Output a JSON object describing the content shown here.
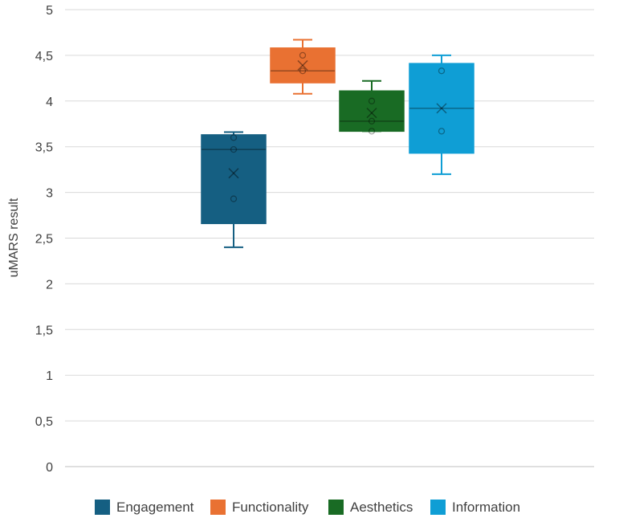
{
  "chart_data": {
    "type": "boxplot",
    "title": "",
    "xlabel": "",
    "ylabel": "uMARS result",
    "ylim": [
      0,
      5
    ],
    "y_ticks": [
      0,
      0.5,
      1,
      1.5,
      2,
      2.5,
      3,
      3.5,
      4,
      4.5,
      5
    ],
    "y_tick_labels": [
      "0",
      "0,5",
      "1",
      "1,5",
      "2",
      "2,5",
      "3",
      "3,5",
      "4",
      "4,5",
      "5"
    ],
    "grid": true,
    "legend_position": "bottom",
    "series": [
      {
        "name": "Engagement",
        "color": "#155F82",
        "min": 2.4,
        "q1": 2.66,
        "median": 3.47,
        "q3": 3.63,
        "max": 3.66,
        "mean": 3.21,
        "points": [
          2.93,
          3.47,
          3.6
        ]
      },
      {
        "name": "Functionality",
        "color": "#E97132",
        "min": 4.08,
        "q1": 4.2,
        "median": 4.33,
        "q3": 4.58,
        "max": 4.67,
        "mean": 4.39,
        "points": [
          4.33,
          4.5
        ]
      },
      {
        "name": "Aesthetics",
        "color": "#196B24",
        "min": 3.67,
        "q1": 3.67,
        "median": 3.78,
        "q3": 4.11,
        "max": 4.22,
        "mean": 3.87,
        "points": [
          3.67,
          3.78,
          4.0
        ]
      },
      {
        "name": "Information",
        "color": "#0F9ED5",
        "min": 3.2,
        "q1": 3.43,
        "median": 3.92,
        "q3": 4.41,
        "max": 4.5,
        "mean": 3.92,
        "points": [
          3.67,
          4.33
        ]
      }
    ]
  }
}
